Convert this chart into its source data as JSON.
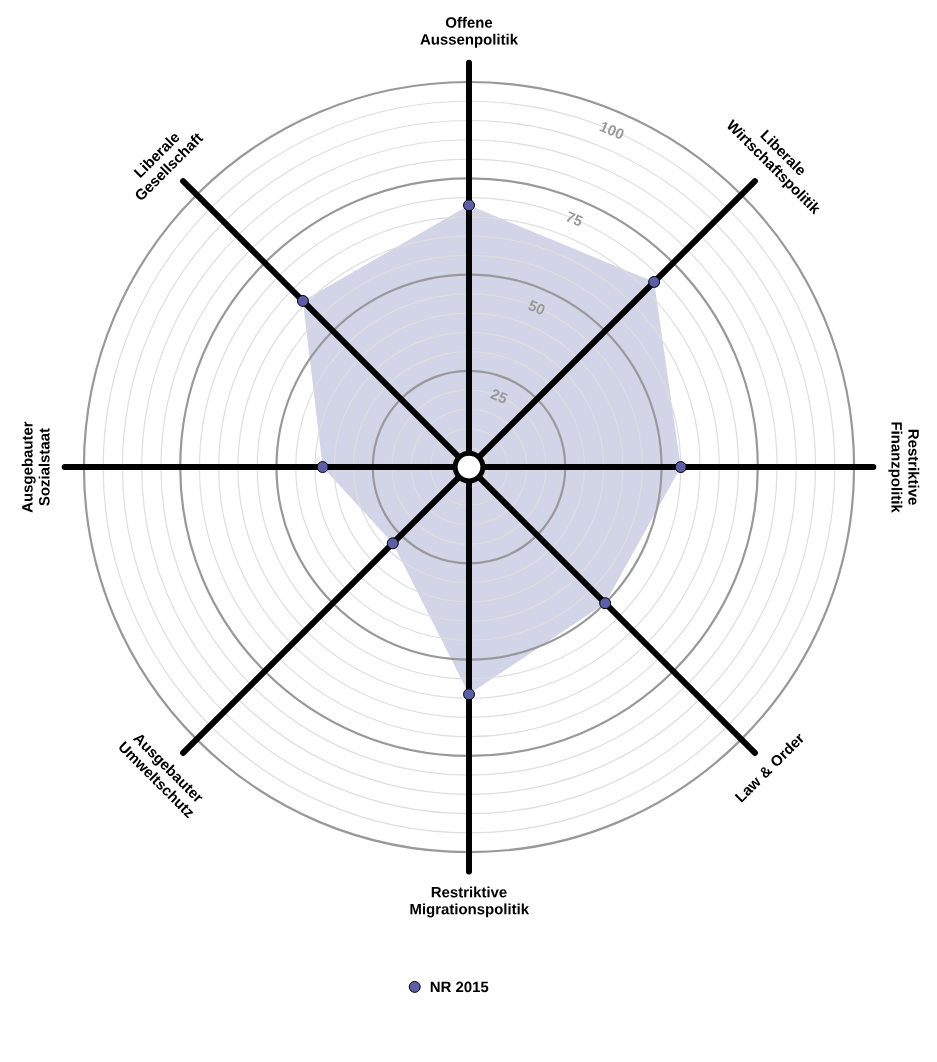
{
  "chart_data": {
    "type": "radar",
    "categories": [
      "Offene Aussenpolitik",
      "Liberale Wirtschaftspolitik",
      "Restriktive Finanzpolitik",
      "Law & Order",
      "Restriktive Migrationspolitik",
      "Ausgebauter Umweltschutz",
      "Ausgebauter Sozialstaat",
      "Liberale Gesellschaft"
    ],
    "series": [
      {
        "name": "NR 2015",
        "color": "#5a5fa8",
        "values": [
          68,
          68,
          55,
          50,
          59,
          28,
          38,
          61
        ]
      }
    ],
    "ylim": [
      0,
      100
    ],
    "yticks": [
      25,
      50,
      75,
      100
    ],
    "grid": true,
    "legend": "bottom",
    "marker": "circle"
  }
}
